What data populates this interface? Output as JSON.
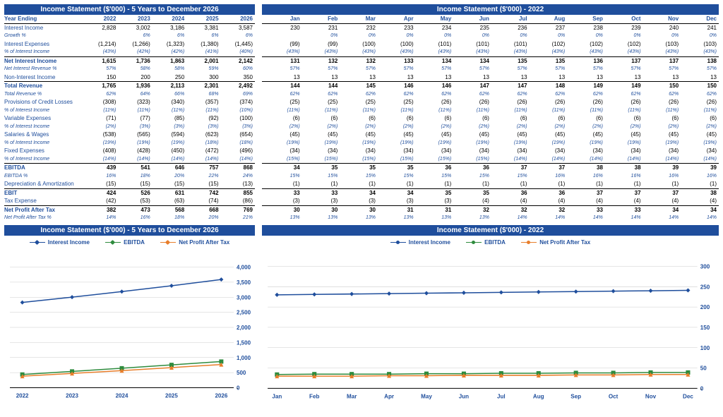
{
  "colors": {
    "header_bg": "#1f4e9c",
    "header_fg": "#ffffff",
    "label": "#1f4e9c",
    "line_interest": "#1f4e9c",
    "line_ebitda": "#2e8b3d",
    "line_npat": "#e87e2b",
    "grid": "#cccccc",
    "axis": "#000000"
  },
  "annual": {
    "title": "Income Statement ($'000) - 5 Years to December 2026",
    "headers": [
      "Year Ending",
      "2022",
      "2023",
      "2024",
      "2025",
      "2026"
    ],
    "rows": [
      {
        "label": "Interest Income",
        "v": [
          "2,828",
          "3,002",
          "3,186",
          "3,381",
          "3,587"
        ],
        "cls": "blue"
      },
      {
        "label": "  Growth %",
        "v": [
          "",
          "6%",
          "6%",
          "6%",
          "6%"
        ],
        "cls": "italic"
      },
      {
        "label": "Interest Expenses",
        "v": [
          "(1,214)",
          "(1,266)",
          "(1,323)",
          "(1,380)",
          "(1,445)"
        ],
        "cls": "blue"
      },
      {
        "label": "  % of Interest Income",
        "v": [
          "(43%)",
          "(42%)",
          "(42%)",
          "(41%)",
          "(40%)"
        ],
        "cls": "italic"
      },
      {
        "label": "Net Interest Income",
        "v": [
          "1,615",
          "1,736",
          "1,863",
          "2,001",
          "2,142"
        ],
        "cls": "bold-row"
      },
      {
        "label": "  Net Interest Revenue %",
        "v": [
          "57%",
          "58%",
          "58%",
          "59%",
          "60%"
        ],
        "cls": "italic"
      },
      {
        "label": "Non-Interest Income",
        "v": [
          "150",
          "200",
          "250",
          "300",
          "350"
        ],
        "cls": "blue"
      },
      {
        "label": "Total Revenue",
        "v": [
          "1,765",
          "1,936",
          "2,113",
          "2,301",
          "2,492"
        ],
        "cls": "bold-row"
      },
      {
        "label": "  Total Revenue %",
        "v": [
          "62%",
          "64%",
          "66%",
          "68%",
          "69%"
        ],
        "cls": "italic"
      },
      {
        "label": "Provisions of Credit Losses",
        "v": [
          "(308)",
          "(323)",
          "(340)",
          "(357)",
          "(374)"
        ],
        "cls": "blue"
      },
      {
        "label": "  % of Interest Income",
        "v": [
          "(11%)",
          "(11%)",
          "(11%)",
          "(11%)",
          "(10%)"
        ],
        "cls": "italic"
      },
      {
        "label": "Variable Expenses",
        "v": [
          "(71)",
          "(77)",
          "(85)",
          "(92)",
          "(100)"
        ],
        "cls": "blue"
      },
      {
        "label": "  % of Interest Income",
        "v": [
          "(2%)",
          "(3%)",
          "(3%)",
          "(3%)",
          "(3%)"
        ],
        "cls": "italic"
      },
      {
        "label": "Salaries & Wages",
        "v": [
          "(538)",
          "(565)",
          "(594)",
          "(623)",
          "(654)"
        ],
        "cls": "blue"
      },
      {
        "label": "  % of Interest Income",
        "v": [
          "(19%)",
          "(19%)",
          "(19%)",
          "(18%)",
          "(18%)"
        ],
        "cls": "italic"
      },
      {
        "label": "Fixed Expenses",
        "v": [
          "(408)",
          "(428)",
          "(450)",
          "(472)",
          "(496)"
        ],
        "cls": "blue"
      },
      {
        "label": "  % of Interest Income",
        "v": [
          "(14%)",
          "(14%)",
          "(14%)",
          "(14%)",
          "(14%)"
        ],
        "cls": "italic"
      },
      {
        "label": "EBITDA",
        "v": [
          "439",
          "541",
          "646",
          "757",
          "868"
        ],
        "cls": "bold-row"
      },
      {
        "label": "  EBITDA %",
        "v": [
          "16%",
          "18%",
          "20%",
          "22%",
          "24%"
        ],
        "cls": "italic"
      },
      {
        "label": "Depreciation & Amortization",
        "v": [
          "(15)",
          "(15)",
          "(15)",
          "(15)",
          "(13)"
        ],
        "cls": "blue"
      },
      {
        "label": "EBIT",
        "v": [
          "424",
          "526",
          "631",
          "742",
          "855"
        ],
        "cls": "bold-row"
      },
      {
        "label": "Tax Expense",
        "v": [
          "(42)",
          "(53)",
          "(63)",
          "(74)",
          "(86)"
        ],
        "cls": "blue"
      },
      {
        "label": "Net Profit After Tax",
        "v": [
          "382",
          "473",
          "568",
          "668",
          "769"
        ],
        "cls": "bold-row"
      },
      {
        "label": "  Net Profit After Tax %",
        "v": [
          "14%",
          "16%",
          "18%",
          "20%",
          "21%"
        ],
        "cls": "italic"
      }
    ]
  },
  "monthly": {
    "title": "Income Statement ($'000) - 2022",
    "headers": [
      "",
      "Jan",
      "Feb",
      "Mar",
      "Apr",
      "May",
      "Jun",
      "Jul",
      "Aug",
      "Sep",
      "Oct",
      "Nov",
      "Dec"
    ],
    "rows": [
      {
        "label": "",
        "v": [
          "230",
          "231",
          "232",
          "233",
          "234",
          "235",
          "236",
          "237",
          "238",
          "239",
          "240",
          "241"
        ],
        "cls": "blue"
      },
      {
        "label": "",
        "v": [
          "",
          "0%",
          "0%",
          "0%",
          "0%",
          "0%",
          "0%",
          "0%",
          "0%",
          "0%",
          "0%",
          "0%"
        ],
        "cls": "italic"
      },
      {
        "label": "",
        "v": [
          "(99)",
          "(99)",
          "(100)",
          "(100)",
          "(101)",
          "(101)",
          "(101)",
          "(102)",
          "(102)",
          "(102)",
          "(103)",
          "(103)"
        ],
        "cls": "blue"
      },
      {
        "label": "",
        "v": [
          "(43%)",
          "(43%)",
          "(43%)",
          "(43%)",
          "(43%)",
          "(43%)",
          "(43%)",
          "(43%)",
          "(43%)",
          "(43%)",
          "(43%)",
          "(43%)"
        ],
        "cls": "italic"
      },
      {
        "label": "",
        "v": [
          "131",
          "132",
          "132",
          "133",
          "134",
          "134",
          "135",
          "135",
          "136",
          "137",
          "137",
          "138"
        ],
        "cls": "bold-row"
      },
      {
        "label": "",
        "v": [
          "57%",
          "57%",
          "57%",
          "57%",
          "57%",
          "57%",
          "57%",
          "57%",
          "57%",
          "57%",
          "57%",
          "57%"
        ],
        "cls": "italic"
      },
      {
        "label": "",
        "v": [
          "13",
          "13",
          "13",
          "13",
          "13",
          "13",
          "13",
          "13",
          "13",
          "13",
          "13",
          "13"
        ],
        "cls": "blue"
      },
      {
        "label": "",
        "v": [
          "144",
          "144",
          "145",
          "146",
          "146",
          "147",
          "147",
          "148",
          "149",
          "149",
          "150",
          "150"
        ],
        "cls": "bold-row"
      },
      {
        "label": "",
        "v": [
          "62%",
          "62%",
          "62%",
          "62%",
          "62%",
          "62%",
          "62%",
          "62%",
          "62%",
          "62%",
          "62%",
          "62%"
        ],
        "cls": "italic"
      },
      {
        "label": "",
        "v": [
          "(25)",
          "(25)",
          "(25)",
          "(25)",
          "(26)",
          "(26)",
          "(26)",
          "(26)",
          "(26)",
          "(26)",
          "(26)",
          "(26)"
        ],
        "cls": "blue"
      },
      {
        "label": "",
        "v": [
          "(11%)",
          "(11%)",
          "(11%)",
          "(11%)",
          "(11%)",
          "(11%)",
          "(11%)",
          "(11%)",
          "(11%)",
          "(11%)",
          "(11%)",
          "(11%)"
        ],
        "cls": "italic"
      },
      {
        "label": "",
        "v": [
          "(6)",
          "(6)",
          "(6)",
          "(6)",
          "(6)",
          "(6)",
          "(6)",
          "(6)",
          "(6)",
          "(6)",
          "(6)",
          "(6)"
        ],
        "cls": "blue"
      },
      {
        "label": "",
        "v": [
          "(2%)",
          "(2%)",
          "(2%)",
          "(2%)",
          "(2%)",
          "(2%)",
          "(2%)",
          "(2%)",
          "(2%)",
          "(2%)",
          "(2%)",
          "(2%)"
        ],
        "cls": "italic"
      },
      {
        "label": "",
        "v": [
          "(45)",
          "(45)",
          "(45)",
          "(45)",
          "(45)",
          "(45)",
          "(45)",
          "(45)",
          "(45)",
          "(45)",
          "(45)",
          "(45)"
        ],
        "cls": "blue"
      },
      {
        "label": "",
        "v": [
          "(19%)",
          "(19%)",
          "(19%)",
          "(19%)",
          "(19%)",
          "(19%)",
          "(19%)",
          "(19%)",
          "(19%)",
          "(19%)",
          "(19%)",
          "(19%)"
        ],
        "cls": "italic"
      },
      {
        "label": "",
        "v": [
          "(34)",
          "(34)",
          "(34)",
          "(34)",
          "(34)",
          "(34)",
          "(34)",
          "(34)",
          "(34)",
          "(34)",
          "(34)",
          "(34)"
        ],
        "cls": "blue"
      },
      {
        "label": "",
        "v": [
          "(15%)",
          "(15%)",
          "(15%)",
          "(15%)",
          "(15%)",
          "(15%)",
          "(14%)",
          "(14%)",
          "(14%)",
          "(14%)",
          "(14%)",
          "(14%)"
        ],
        "cls": "italic"
      },
      {
        "label": "",
        "v": [
          "34",
          "35",
          "35",
          "35",
          "36",
          "36",
          "37",
          "37",
          "38",
          "38",
          "39",
          "39"
        ],
        "cls": "bold-row"
      },
      {
        "label": "",
        "v": [
          "15%",
          "15%",
          "15%",
          "15%",
          "15%",
          "15%",
          "15%",
          "16%",
          "16%",
          "16%",
          "16%",
          "16%"
        ],
        "cls": "italic"
      },
      {
        "label": "",
        "v": [
          "(1)",
          "(1)",
          "(1)",
          "(1)",
          "(1)",
          "(1)",
          "(1)",
          "(1)",
          "(1)",
          "(1)",
          "(1)",
          "(1)"
        ],
        "cls": "blue"
      },
      {
        "label": "",
        "v": [
          "33",
          "33",
          "34",
          "34",
          "35",
          "35",
          "36",
          "36",
          "37",
          "37",
          "37",
          "38"
        ],
        "cls": "bold-row"
      },
      {
        "label": "",
        "v": [
          "(3)",
          "(3)",
          "(3)",
          "(3)",
          "(3)",
          "(4)",
          "(4)",
          "(4)",
          "(4)",
          "(4)",
          "(4)",
          "(4)"
        ],
        "cls": "blue"
      },
      {
        "label": "",
        "v": [
          "30",
          "30",
          "30",
          "31",
          "31",
          "32",
          "32",
          "32",
          "33",
          "33",
          "34",
          "34"
        ],
        "cls": "bold-row"
      },
      {
        "label": "",
        "v": [
          "13%",
          "13%",
          "13%",
          "13%",
          "13%",
          "13%",
          "14%",
          "14%",
          "14%",
          "14%",
          "14%",
          "14%"
        ],
        "cls": "italic"
      }
    ]
  },
  "chart_annual": {
    "title": "Income Statement ($'000) - 5 Years to December 2026",
    "legend": [
      "Interest Income",
      "EBITDA",
      "Net Profit After Tax"
    ],
    "categories": [
      "2022",
      "2023",
      "2024",
      "2025",
      "2026"
    ],
    "ylim": [
      0,
      4000
    ],
    "ystep": 500,
    "series": [
      {
        "name": "Interest Income",
        "color": "#1f4e9c",
        "marker": "diamond",
        "values": [
          2828,
          3002,
          3186,
          3381,
          3587
        ]
      },
      {
        "name": "EBITDA",
        "color": "#2e8b3d",
        "marker": "square",
        "values": [
          439,
          541,
          646,
          757,
          868
        ]
      },
      {
        "name": "Net Profit After Tax",
        "color": "#e87e2b",
        "marker": "triangle",
        "values": [
          382,
          473,
          568,
          668,
          769
        ]
      }
    ]
  },
  "chart_monthly": {
    "title": "Income Statement ($'000) - 2022",
    "legend": [
      "Interest Income",
      "EBITDA",
      "Net Profit After Tax"
    ],
    "categories": [
      "Jan",
      "Feb",
      "Mar",
      "Apr",
      "May",
      "Jun",
      "Jul",
      "Aug",
      "Sep",
      "Oct",
      "Nov",
      "Dec"
    ],
    "ylim": [
      0,
      300
    ],
    "ystep": 50,
    "series": [
      {
        "name": "Interest Income",
        "color": "#1f4e9c",
        "marker": "diamond",
        "values": [
          230,
          231,
          232,
          233,
          234,
          235,
          236,
          237,
          238,
          239,
          240,
          241
        ]
      },
      {
        "name": "EBITDA",
        "color": "#2e8b3d",
        "marker": "square",
        "values": [
          34,
          35,
          35,
          35,
          36,
          36,
          37,
          37,
          38,
          38,
          39,
          39
        ]
      },
      {
        "name": "Net Profit After Tax",
        "color": "#e87e2b",
        "marker": "triangle",
        "values": [
          30,
          30,
          30,
          31,
          31,
          32,
          32,
          32,
          33,
          33,
          34,
          34
        ]
      }
    ]
  }
}
